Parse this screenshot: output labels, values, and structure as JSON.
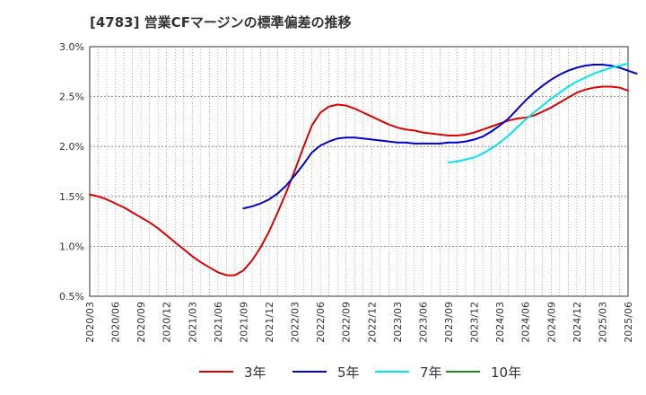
{
  "chart_data": {
    "type": "line",
    "title": "[4783]  営業CFマージンの標準偏差の推移",
    "xlabel": "",
    "ylabel": "",
    "ylim": [
      0.5,
      3.0
    ],
    "y_ticks": [
      "0.5%",
      "1.0%",
      "1.5%",
      "2.0%",
      "2.5%",
      "3.0%"
    ],
    "x_ticks": [
      "2020/03",
      "2020/06",
      "2020/09",
      "2020/12",
      "2021/03",
      "2021/06",
      "2021/09",
      "2021/12",
      "2022/03",
      "2022/06",
      "2022/09",
      "2022/12",
      "2023/03",
      "2023/06",
      "2023/09",
      "2023/12",
      "2024/03",
      "2024/06",
      "2024/09",
      "2024/12",
      "2025/03",
      "2025/06"
    ],
    "grid": true,
    "legend_position": "bottom",
    "series": [
      {
        "name": "3年",
        "color": "#dd0000",
        "points": [
          [
            "2020/03",
            1.52
          ],
          [
            "2020/04",
            1.5
          ],
          [
            "2020/05",
            1.47
          ],
          [
            "2020/06",
            1.43
          ],
          [
            "2020/07",
            1.39
          ],
          [
            "2020/08",
            1.34
          ],
          [
            "2020/09",
            1.29
          ],
          [
            "2020/10",
            1.24
          ],
          [
            "2020/11",
            1.18
          ],
          [
            "2020/12",
            1.11
          ],
          [
            "2021/01",
            1.04
          ],
          [
            "2021/02",
            0.97
          ],
          [
            "2021/03",
            0.9
          ],
          [
            "2021/04",
            0.84
          ],
          [
            "2021/05",
            0.79
          ],
          [
            "2021/06",
            0.74
          ],
          [
            "2021/07",
            0.71
          ],
          [
            "2021/08",
            0.71
          ],
          [
            "2021/09",
            0.76
          ],
          [
            "2021/10",
            0.86
          ],
          [
            "2021/11",
            0.99
          ],
          [
            "2021/12",
            1.15
          ],
          [
            "2022/01",
            1.34
          ],
          [
            "2022/02",
            1.54
          ],
          [
            "2022/03",
            1.76
          ],
          [
            "2022/04",
            1.99
          ],
          [
            "2022/05",
            2.21
          ],
          [
            "2022/06",
            2.34
          ],
          [
            "2022/07",
            2.4
          ],
          [
            "2022/08",
            2.42
          ],
          [
            "2022/09",
            2.41
          ],
          [
            "2022/10",
            2.38
          ],
          [
            "2022/11",
            2.34
          ],
          [
            "2022/12",
            2.3
          ],
          [
            "2023/01",
            2.26
          ],
          [
            "2023/02",
            2.22
          ],
          [
            "2023/03",
            2.19
          ],
          [
            "2023/04",
            2.17
          ],
          [
            "2023/05",
            2.16
          ],
          [
            "2023/06",
            2.14
          ],
          [
            "2023/07",
            2.13
          ],
          [
            "2023/08",
            2.12
          ],
          [
            "2023/09",
            2.11
          ],
          [
            "2023/10",
            2.11
          ],
          [
            "2023/11",
            2.12
          ],
          [
            "2023/12",
            2.14
          ],
          [
            "2024/01",
            2.17
          ],
          [
            "2024/02",
            2.2
          ],
          [
            "2024/03",
            2.23
          ],
          [
            "2024/04",
            2.26
          ],
          [
            "2024/05",
            2.28
          ],
          [
            "2024/06",
            2.29
          ],
          [
            "2024/07",
            2.31
          ],
          [
            "2024/08",
            2.35
          ],
          [
            "2024/09",
            2.39
          ],
          [
            "2024/10",
            2.44
          ],
          [
            "2024/11",
            2.49
          ],
          [
            "2024/12",
            2.54
          ],
          [
            "2025/01",
            2.57
          ],
          [
            "2025/02",
            2.59
          ],
          [
            "2025/03",
            2.6
          ],
          [
            "2025/04",
            2.6
          ],
          [
            "2025/05",
            2.59
          ],
          [
            "2025/06",
            2.56
          ]
        ]
      },
      {
        "name": "5年",
        "color": "#0000cc",
        "points": [
          [
            "2021/09",
            1.38
          ],
          [
            "2021/10",
            1.4
          ],
          [
            "2021/11",
            1.43
          ],
          [
            "2021/12",
            1.47
          ],
          [
            "2022/01",
            1.53
          ],
          [
            "2022/02",
            1.61
          ],
          [
            "2022/03",
            1.71
          ],
          [
            "2022/04",
            1.82
          ],
          [
            "2022/05",
            1.94
          ],
          [
            "2022/06",
            2.01
          ],
          [
            "2022/07",
            2.05
          ],
          [
            "2022/08",
            2.08
          ],
          [
            "2022/09",
            2.09
          ],
          [
            "2022/10",
            2.09
          ],
          [
            "2022/11",
            2.08
          ],
          [
            "2022/12",
            2.07
          ],
          [
            "2023/01",
            2.06
          ],
          [
            "2023/02",
            2.05
          ],
          [
            "2023/03",
            2.04
          ],
          [
            "2023/04",
            2.04
          ],
          [
            "2023/05",
            2.03
          ],
          [
            "2023/06",
            2.03
          ],
          [
            "2023/07",
            2.03
          ],
          [
            "2023/08",
            2.03
          ],
          [
            "2023/09",
            2.04
          ],
          [
            "2023/10",
            2.04
          ],
          [
            "2023/11",
            2.05
          ],
          [
            "2023/12",
            2.07
          ],
          [
            "2024/01",
            2.1
          ],
          [
            "2024/02",
            2.15
          ],
          [
            "2024/03",
            2.21
          ],
          [
            "2024/04",
            2.28
          ],
          [
            "2024/05",
            2.37
          ],
          [
            "2024/06",
            2.46
          ],
          [
            "2024/07",
            2.54
          ],
          [
            "2024/08",
            2.61
          ],
          [
            "2024/09",
            2.67
          ],
          [
            "2024/10",
            2.72
          ],
          [
            "2024/11",
            2.76
          ],
          [
            "2024/12",
            2.79
          ],
          [
            "2025/01",
            2.81
          ],
          [
            "2025/02",
            2.82
          ],
          [
            "2025/03",
            2.82
          ],
          [
            "2025/04",
            2.81
          ],
          [
            "2025/05",
            2.79
          ],
          [
            "2025/06",
            2.76
          ],
          [
            "2025/07",
            2.73
          ]
        ]
      },
      {
        "name": "7年",
        "color": "#00e5ee",
        "points": [
          [
            "2023/09",
            1.84
          ],
          [
            "2023/10",
            1.85
          ],
          [
            "2023/11",
            1.87
          ],
          [
            "2023/12",
            1.89
          ],
          [
            "2024/01",
            1.93
          ],
          [
            "2024/02",
            1.98
          ],
          [
            "2024/03",
            2.04
          ],
          [
            "2024/04",
            2.11
          ],
          [
            "2024/05",
            2.19
          ],
          [
            "2024/06",
            2.27
          ],
          [
            "2024/07",
            2.34
          ],
          [
            "2024/08",
            2.41
          ],
          [
            "2024/09",
            2.48
          ],
          [
            "2024/10",
            2.54
          ],
          [
            "2024/11",
            2.6
          ],
          [
            "2024/12",
            2.65
          ],
          [
            "2025/01",
            2.69
          ],
          [
            "2025/02",
            2.73
          ],
          [
            "2025/03",
            2.76
          ],
          [
            "2025/04",
            2.79
          ],
          [
            "2025/05",
            2.81
          ],
          [
            "2025/06",
            2.83
          ]
        ]
      },
      {
        "name": "10年",
        "color": "#228b22",
        "points": []
      }
    ]
  }
}
